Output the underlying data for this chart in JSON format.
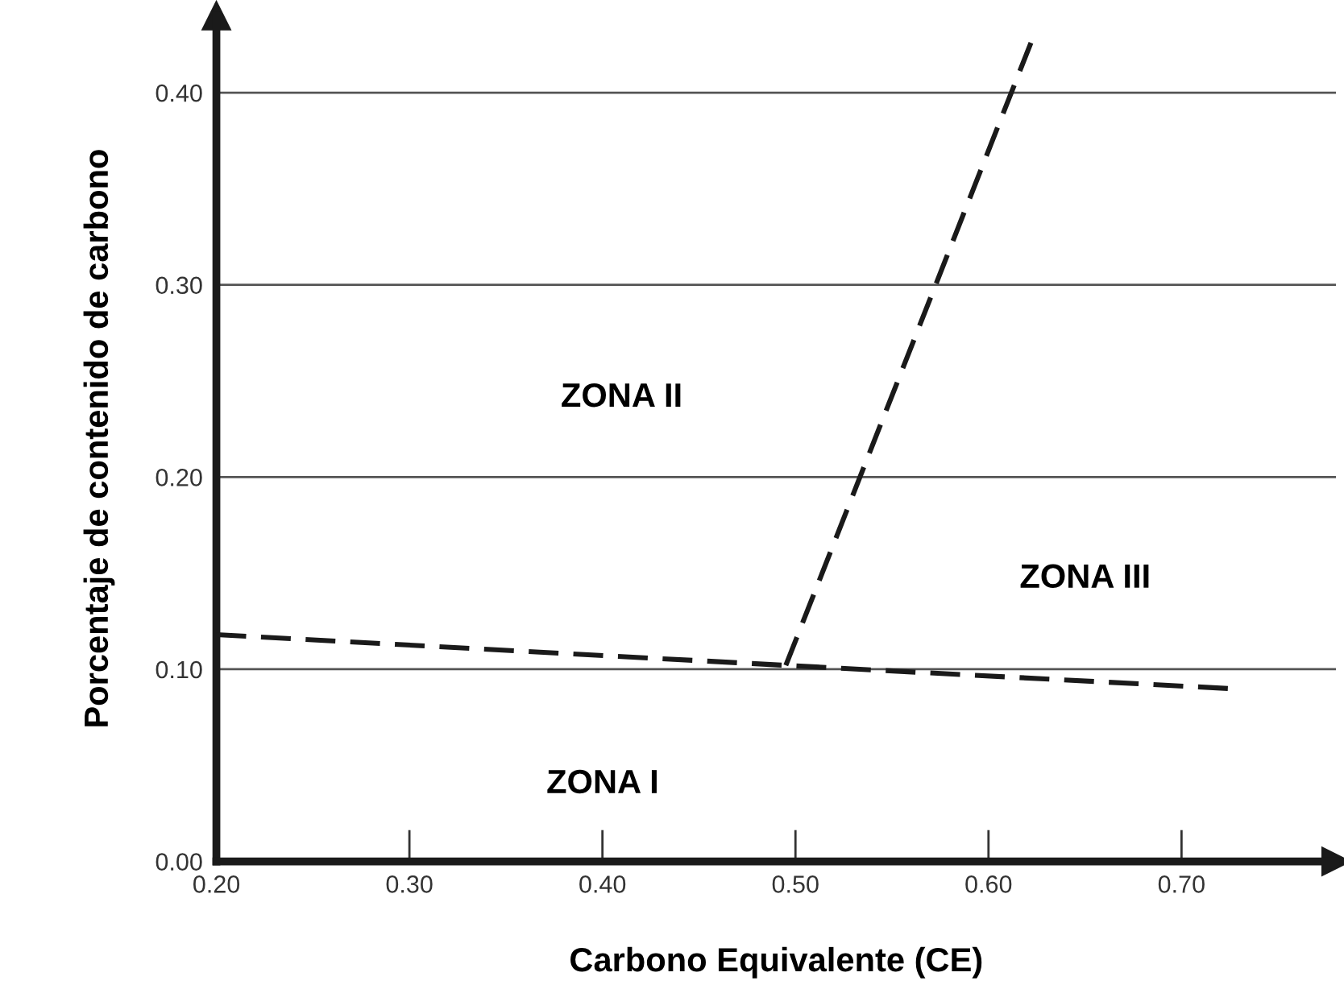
{
  "chart_data": {
    "type": "line",
    "xlabel": "Carbono Equivalente (CE)",
    "ylabel": "Porcentaje de contenido de carbono",
    "series": [
      {
        "color": "#1a1a1a",
        "x": [
          0.2,
          0.495,
          0.724
        ],
        "values": [
          0.118,
          0.102,
          0.09
        ]
      },
      {
        "color": "#1a1a1a",
        "x": [
          0.495,
          0.622
        ],
        "values": [
          0.102,
          0.426
        ]
      }
    ],
    "line_style": "dashed",
    "marker": "none",
    "xlim": [
      0.2,
      0.78
    ],
    "ylim": [
      0.0,
      0.44
    ],
    "xticks": [
      {
        "value": 0.2,
        "label": "0.20"
      },
      {
        "value": 0.3,
        "label": "0.30"
      },
      {
        "value": 0.4,
        "label": "0.40"
      },
      {
        "value": 0.5,
        "label": "0.50"
      },
      {
        "value": 0.6,
        "label": "0.60"
      },
      {
        "value": 0.7,
        "label": "0.70"
      }
    ],
    "yticks": [
      {
        "value": 0.0,
        "label": "0.00"
      },
      {
        "value": 0.1,
        "label": "0.10"
      },
      {
        "value": 0.2,
        "label": "0.20"
      },
      {
        "value": 0.3,
        "label": "0.30"
      },
      {
        "value": 0.4,
        "label": "0.40"
      }
    ],
    "grid": "y",
    "annotations": [
      "ZONA I",
      "ZONA II",
      "ZONA III"
    ]
  }
}
